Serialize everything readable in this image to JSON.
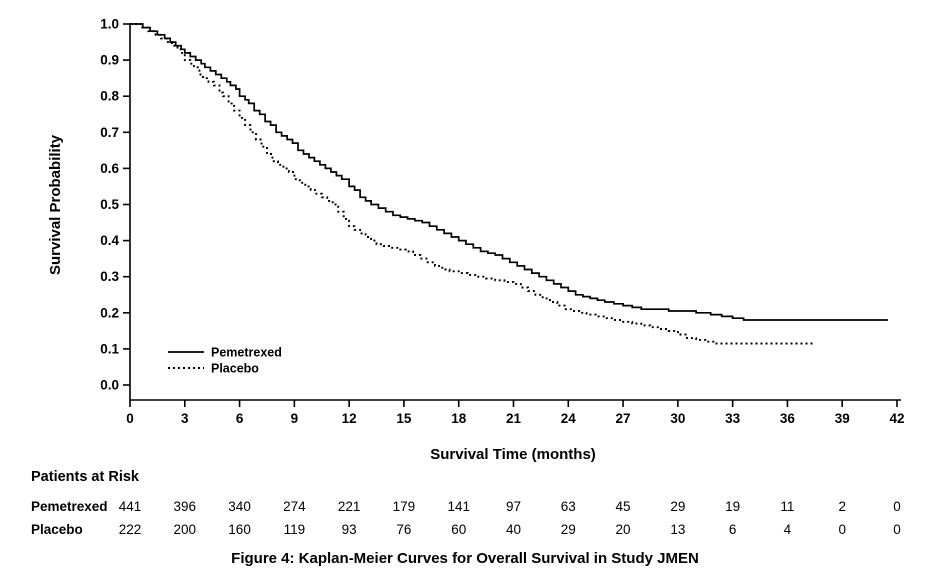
{
  "caption": "Figure 4: Kaplan-Meier Curves for Overall Survival in Study JMEN",
  "colors": {
    "line": "#000000",
    "background": "#ffffff",
    "text": "#000000"
  },
  "chart_data": {
    "type": "line",
    "subtype": "kaplan-meier-step",
    "title": "",
    "xlabel": "Survival Time (months)",
    "ylabel": "Survival Probability",
    "xlim": [
      0,
      42
    ],
    "ylim": [
      0.0,
      1.0
    ],
    "x_ticks": [
      0,
      3,
      6,
      9,
      12,
      15,
      18,
      21,
      24,
      27,
      30,
      33,
      36,
      39,
      42
    ],
    "y_ticks": [
      0.0,
      0.1,
      0.2,
      0.3,
      0.4,
      0.5,
      0.6,
      0.7,
      0.8,
      0.9,
      1.0
    ],
    "grid": false,
    "legend_position": "inside-lower-left",
    "series": [
      {
        "name": "Pemetrexed",
        "style": "solid",
        "points": [
          [
            0,
            1.0
          ],
          [
            0.7,
            0.99
          ],
          [
            1.1,
            0.98
          ],
          [
            1.5,
            0.97
          ],
          [
            1.9,
            0.96
          ],
          [
            2.2,
            0.95
          ],
          [
            2.5,
            0.94
          ],
          [
            2.8,
            0.93
          ],
          [
            3.0,
            0.92
          ],
          [
            3.3,
            0.91
          ],
          [
            3.6,
            0.9
          ],
          [
            3.9,
            0.89
          ],
          [
            4.1,
            0.88
          ],
          [
            4.4,
            0.87
          ],
          [
            4.7,
            0.86
          ],
          [
            5.0,
            0.85
          ],
          [
            5.3,
            0.84
          ],
          [
            5.5,
            0.83
          ],
          [
            5.8,
            0.82
          ],
          [
            6.0,
            0.8
          ],
          [
            6.3,
            0.79
          ],
          [
            6.5,
            0.78
          ],
          [
            6.8,
            0.76
          ],
          [
            7.1,
            0.75
          ],
          [
            7.4,
            0.73
          ],
          [
            7.7,
            0.72
          ],
          [
            8.0,
            0.7
          ],
          [
            8.3,
            0.69
          ],
          [
            8.6,
            0.68
          ],
          [
            8.9,
            0.67
          ],
          [
            9.2,
            0.65
          ],
          [
            9.5,
            0.64
          ],
          [
            9.8,
            0.63
          ],
          [
            10.1,
            0.62
          ],
          [
            10.4,
            0.61
          ],
          [
            10.7,
            0.6
          ],
          [
            11.0,
            0.59
          ],
          [
            11.3,
            0.58
          ],
          [
            11.6,
            0.57
          ],
          [
            12.0,
            0.55
          ],
          [
            12.3,
            0.54
          ],
          [
            12.6,
            0.52
          ],
          [
            12.9,
            0.51
          ],
          [
            13.2,
            0.5
          ],
          [
            13.6,
            0.49
          ],
          [
            14.0,
            0.48
          ],
          [
            14.4,
            0.47
          ],
          [
            14.8,
            0.465
          ],
          [
            15.2,
            0.46
          ],
          [
            15.6,
            0.455
          ],
          [
            16.0,
            0.45
          ],
          [
            16.4,
            0.44
          ],
          [
            16.8,
            0.43
          ],
          [
            17.2,
            0.42
          ],
          [
            17.6,
            0.41
          ],
          [
            18.0,
            0.4
          ],
          [
            18.4,
            0.39
          ],
          [
            18.8,
            0.38
          ],
          [
            19.2,
            0.37
          ],
          [
            19.6,
            0.365
          ],
          [
            20.0,
            0.36
          ],
          [
            20.4,
            0.35
          ],
          [
            20.8,
            0.34
          ],
          [
            21.2,
            0.33
          ],
          [
            21.6,
            0.32
          ],
          [
            22.0,
            0.31
          ],
          [
            22.4,
            0.3
          ],
          [
            22.8,
            0.29
          ],
          [
            23.2,
            0.28
          ],
          [
            23.6,
            0.27
          ],
          [
            24.0,
            0.26
          ],
          [
            24.4,
            0.25
          ],
          [
            24.8,
            0.245
          ],
          [
            25.2,
            0.24
          ],
          [
            25.6,
            0.235
          ],
          [
            26.0,
            0.23
          ],
          [
            26.5,
            0.225
          ],
          [
            27.0,
            0.22
          ],
          [
            27.5,
            0.215
          ],
          [
            28.0,
            0.21
          ],
          [
            29.5,
            0.205
          ],
          [
            31.0,
            0.2
          ],
          [
            31.8,
            0.195
          ],
          [
            32.4,
            0.19
          ],
          [
            33.0,
            0.185
          ],
          [
            33.6,
            0.18
          ],
          [
            41.5,
            0.18
          ]
        ]
      },
      {
        "name": "Placebo",
        "style": "dotted",
        "points": [
          [
            0,
            1.0
          ],
          [
            0.6,
            0.99
          ],
          [
            1.0,
            0.98
          ],
          [
            1.4,
            0.97
          ],
          [
            1.7,
            0.96
          ],
          [
            2.0,
            0.95
          ],
          [
            2.3,
            0.94
          ],
          [
            2.6,
            0.93
          ],
          [
            2.8,
            0.92
          ],
          [
            3.0,
            0.9
          ],
          [
            3.3,
            0.89
          ],
          [
            3.5,
            0.88
          ],
          [
            3.8,
            0.86
          ],
          [
            4.0,
            0.85
          ],
          [
            4.3,
            0.84
          ],
          [
            4.6,
            0.83
          ],
          [
            4.9,
            0.81
          ],
          [
            5.1,
            0.8
          ],
          [
            5.4,
            0.78
          ],
          [
            5.7,
            0.76
          ],
          [
            6.0,
            0.74
          ],
          [
            6.3,
            0.72
          ],
          [
            6.6,
            0.7
          ],
          [
            6.9,
            0.68
          ],
          [
            7.2,
            0.66
          ],
          [
            7.5,
            0.64
          ],
          [
            7.8,
            0.62
          ],
          [
            8.1,
            0.61
          ],
          [
            8.4,
            0.6
          ],
          [
            8.7,
            0.59
          ],
          [
            9.0,
            0.57
          ],
          [
            9.3,
            0.56
          ],
          [
            9.6,
            0.55
          ],
          [
            9.9,
            0.54
          ],
          [
            10.2,
            0.53
          ],
          [
            10.5,
            0.52
          ],
          [
            10.8,
            0.51
          ],
          [
            11.1,
            0.5
          ],
          [
            11.4,
            0.48
          ],
          [
            11.7,
            0.46
          ],
          [
            12.0,
            0.44
          ],
          [
            12.3,
            0.43
          ],
          [
            12.6,
            0.42
          ],
          [
            12.9,
            0.41
          ],
          [
            13.2,
            0.4
          ],
          [
            13.5,
            0.39
          ],
          [
            13.9,
            0.385
          ],
          [
            14.3,
            0.38
          ],
          [
            14.7,
            0.375
          ],
          [
            15.1,
            0.37
          ],
          [
            15.5,
            0.36
          ],
          [
            15.9,
            0.35
          ],
          [
            16.3,
            0.34
          ],
          [
            16.7,
            0.33
          ],
          [
            17.1,
            0.32
          ],
          [
            17.5,
            0.315
          ],
          [
            18.0,
            0.31
          ],
          [
            18.5,
            0.305
          ],
          [
            19.0,
            0.3
          ],
          [
            19.5,
            0.295
          ],
          [
            20.0,
            0.29
          ],
          [
            20.5,
            0.285
          ],
          [
            21.0,
            0.28
          ],
          [
            21.4,
            0.27
          ],
          [
            21.8,
            0.26
          ],
          [
            22.2,
            0.25
          ],
          [
            22.6,
            0.24
          ],
          [
            23.0,
            0.23
          ],
          [
            23.4,
            0.22
          ],
          [
            23.8,
            0.21
          ],
          [
            24.2,
            0.205
          ],
          [
            24.6,
            0.2
          ],
          [
            25.0,
            0.195
          ],
          [
            25.5,
            0.19
          ],
          [
            26.0,
            0.185
          ],
          [
            26.5,
            0.18
          ],
          [
            27.0,
            0.175
          ],
          [
            27.5,
            0.17
          ],
          [
            28.0,
            0.165
          ],
          [
            28.5,
            0.16
          ],
          [
            29.0,
            0.155
          ],
          [
            29.5,
            0.15
          ],
          [
            30.0,
            0.14
          ],
          [
            30.5,
            0.13
          ],
          [
            31.0,
            0.125
          ],
          [
            31.5,
            0.12
          ],
          [
            32.0,
            0.115
          ],
          [
            37.5,
            0.115
          ]
        ]
      }
    ]
  },
  "at_risk": {
    "heading": "Patients at Risk",
    "times": [
      0,
      3,
      6,
      9,
      12,
      15,
      18,
      21,
      24,
      27,
      30,
      33,
      36,
      39,
      42
    ],
    "rows": [
      {
        "label": "Pemetrexed",
        "counts": [
          441,
          396,
          340,
          274,
          221,
          179,
          141,
          97,
          63,
          45,
          29,
          19,
          11,
          2,
          0
        ]
      },
      {
        "label": "Placebo",
        "counts": [
          222,
          200,
          160,
          119,
          93,
          76,
          60,
          40,
          29,
          20,
          13,
          6,
          4,
          0,
          0
        ]
      }
    ]
  }
}
